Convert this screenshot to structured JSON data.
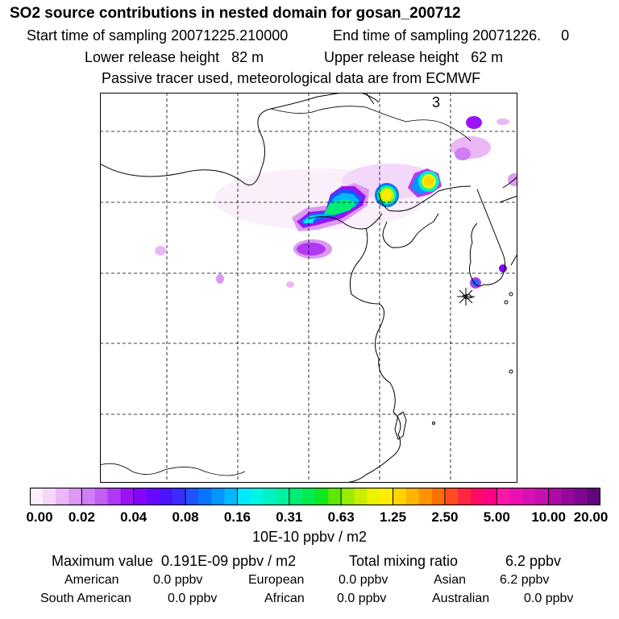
{
  "header": {
    "title": "SO2 source contributions in nested domain for gosan_200712",
    "start_sampling": "Start time of sampling 20071225.210000",
    "end_sampling": "End time of sampling 20071226.     0",
    "lower_release": "Lower release height   82 m",
    "upper_release": "Upper release height   62 m",
    "tracer_note": "Passive tracer used, meteorological data are from ECMWF"
  },
  "map": {
    "panel_label": "3",
    "receptor": "Gosan",
    "plumes": [
      {
        "name": "north-china-plume",
        "level": 0.31
      },
      {
        "name": "bohai-hotspot",
        "level": 1.25
      },
      {
        "name": "liaoning-hotspot",
        "level": 1.25
      },
      {
        "name": "shandong-plume",
        "level": 0.04
      },
      {
        "name": "korea-coast-spot",
        "level": 0.08
      }
    ]
  },
  "colorbar": {
    "tick_labels": [
      "0.00",
      "0.02",
      "0.04",
      "0.08",
      "0.16",
      "0.31",
      "0.63",
      "1.25",
      "2.50",
      "5.00",
      "10.00",
      "20.00"
    ],
    "colors": [
      "#fbeffc",
      "#f4d8fa",
      "#eab8f6",
      "#dd98f2",
      "#d07ef4",
      "#c35ef4",
      "#b139f6",
      "#9c11f6",
      "#8305fb",
      "#6a08fc",
      "#4c14fc",
      "#3c2cfc",
      "#1e54ff",
      "#0a74ff",
      "#0096ff",
      "#00b8ff",
      "#00eaff",
      "#00f6e4",
      "#00f2c2",
      "#00f2a0",
      "#00ee74",
      "#00ec4c",
      "#10e81c",
      "#5ce800",
      "#98ec00",
      "#c8ee00",
      "#ecf200",
      "#ffee00",
      "#ffd400",
      "#ffb400",
      "#ff9200",
      "#ff7000",
      "#ff4c20",
      "#ff2840",
      "#ff0a64",
      "#ff0088",
      "#ff18a8",
      "#ec10b2",
      "#d810b2",
      "#c410ac",
      "#ae0aa4",
      "#96089c",
      "#7c0690",
      "#62047c"
    ],
    "units": "10E-10 ppbv / m2"
  },
  "summary": {
    "maximum": "Maximum value  0.191E-09 ppbv / m2",
    "total_label": "Total mixing ratio",
    "total_value": "6.2 ppbv",
    "regions": [
      {
        "name": "American",
        "value": "0.0 ppbv"
      },
      {
        "name": "European",
        "value": "0.0 ppbv"
      },
      {
        "name": "Asian",
        "value": "6.2 ppbv"
      },
      {
        "name": "South American",
        "value": "0.0 ppbv"
      },
      {
        "name": "African",
        "value": "0.0 ppbv"
      },
      {
        "name": "Australian",
        "value": "0.0 ppbv"
      }
    ]
  }
}
